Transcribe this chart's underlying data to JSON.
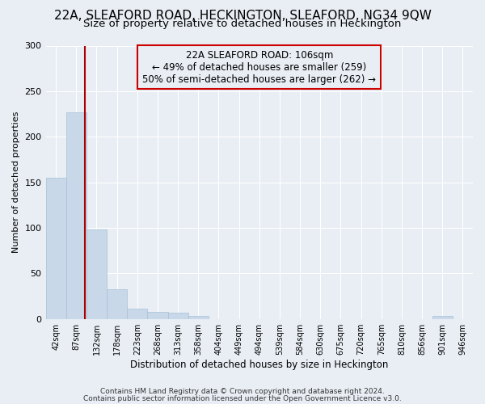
{
  "title1": "22A, SLEAFORD ROAD, HECKINGTON, SLEAFORD, NG34 9QW",
  "title2": "Size of property relative to detached houses in Heckington",
  "xlabel": "Distribution of detached houses by size in Heckington",
  "ylabel": "Number of detached properties",
  "categories": [
    "42sqm",
    "87sqm",
    "132sqm",
    "178sqm",
    "223sqm",
    "268sqm",
    "313sqm",
    "358sqm",
    "404sqm",
    "449sqm",
    "494sqm",
    "539sqm",
    "584sqm",
    "630sqm",
    "675sqm",
    "720sqm",
    "765sqm",
    "810sqm",
    "856sqm",
    "901sqm",
    "946sqm"
  ],
  "values": [
    155,
    227,
    98,
    33,
    11,
    8,
    7,
    3,
    0,
    0,
    0,
    0,
    0,
    0,
    0,
    0,
    0,
    0,
    0,
    3,
    0
  ],
  "bar_color": "#c8d8e8",
  "bar_edge_color": "#a8c0d8",
  "vline_color": "#aa0000",
  "annotation_line1": "22A SLEAFORD ROAD: 106sqm",
  "annotation_line2": "← 49% of detached houses are smaller (259)",
  "annotation_line3": "50% of semi-detached houses are larger (262) →",
  "annotation_box_color": "#cc0000",
  "ylim": [
    0,
    300
  ],
  "yticks": [
    0,
    50,
    100,
    150,
    200,
    250,
    300
  ],
  "footer1": "Contains HM Land Registry data © Crown copyright and database right 2024.",
  "footer2": "Contains public sector information licensed under the Open Government Licence v3.0.",
  "bg_color": "#e8eef4",
  "plot_bg_color": "#e8eef4",
  "grid_color": "#ffffff",
  "title1_fontsize": 11,
  "title2_fontsize": 9.5
}
